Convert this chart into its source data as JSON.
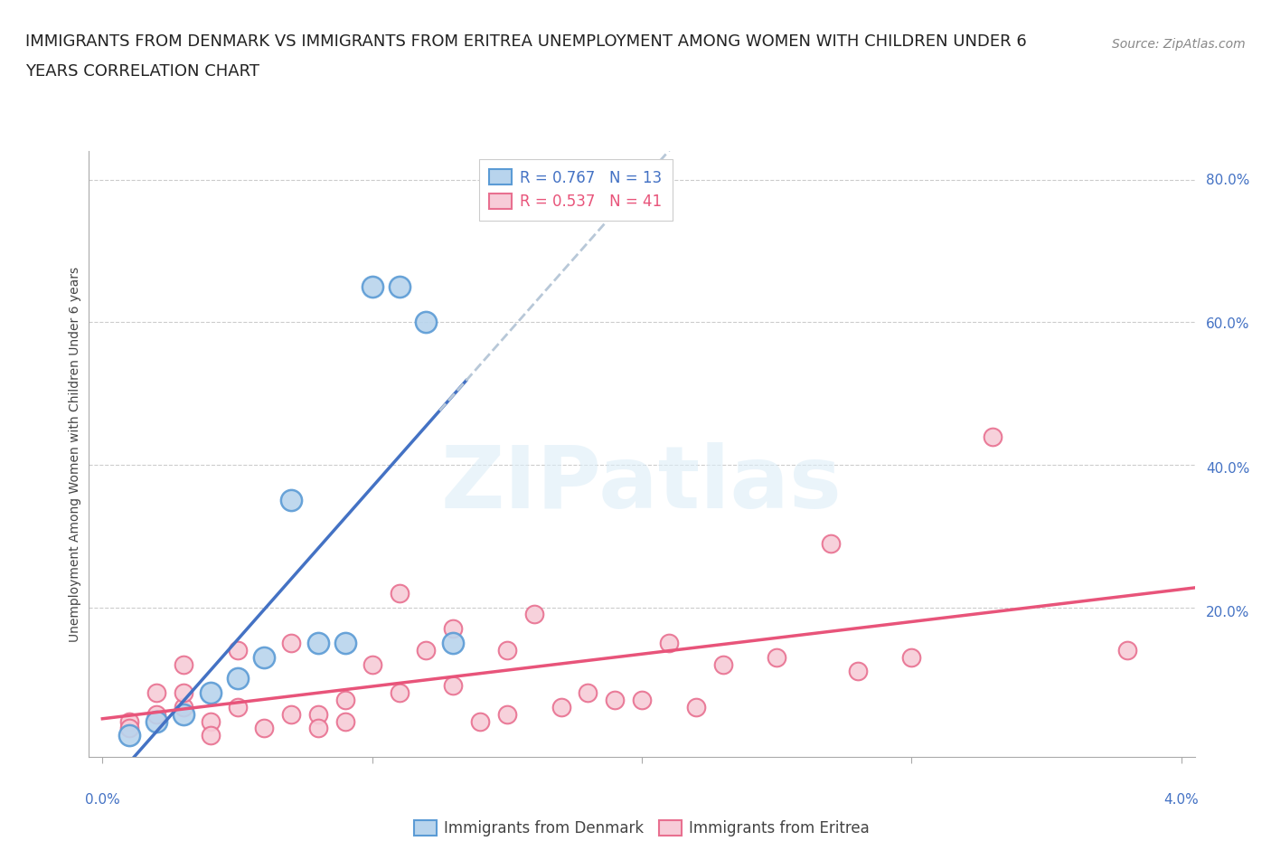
{
  "title_line1": "IMMIGRANTS FROM DENMARK VS IMMIGRANTS FROM ERITREA UNEMPLOYMENT AMONG WOMEN WITH CHILDREN UNDER 6",
  "title_line2": "YEARS CORRELATION CHART",
  "source": "Source: ZipAtlas.com",
  "ylabel": "Unemployment Among Women with Children Under 6 years",
  "denmark_R": 0.767,
  "denmark_N": 13,
  "eritrea_R": 0.537,
  "eritrea_N": 41,
  "legend_label_denmark": "Immigrants from Denmark",
  "legend_label_eritrea": "Immigrants from Eritrea",
  "watermark": "ZIPatlas",
  "denmark_color": "#b8d4ed",
  "denmark_edge_color": "#5b9bd5",
  "eritrea_color": "#f7ccd8",
  "eritrea_edge_color": "#e87090",
  "denmark_line_color": "#4472c4",
  "eritrea_line_color": "#e8547a",
  "denmark_dashed_color": "#b8c8d8",
  "denmark_scatter_x": [
    0.001,
    0.002,
    0.003,
    0.004,
    0.005,
    0.006,
    0.007,
    0.008,
    0.009,
    0.01,
    0.011,
    0.012,
    0.013
  ],
  "denmark_scatter_y": [
    0.02,
    0.04,
    0.05,
    0.08,
    0.1,
    0.13,
    0.35,
    0.15,
    0.15,
    0.65,
    0.65,
    0.6,
    0.15
  ],
  "eritrea_scatter_x": [
    0.001,
    0.001,
    0.002,
    0.002,
    0.003,
    0.003,
    0.003,
    0.004,
    0.004,
    0.005,
    0.005,
    0.006,
    0.007,
    0.007,
    0.008,
    0.008,
    0.009,
    0.009,
    0.01,
    0.011,
    0.011,
    0.012,
    0.013,
    0.013,
    0.014,
    0.015,
    0.015,
    0.016,
    0.017,
    0.018,
    0.019,
    0.02,
    0.021,
    0.022,
    0.023,
    0.025,
    0.027,
    0.028,
    0.03,
    0.033,
    0.038
  ],
  "eritrea_scatter_y": [
    0.04,
    0.03,
    0.05,
    0.08,
    0.06,
    0.08,
    0.12,
    0.04,
    0.02,
    0.06,
    0.14,
    0.03,
    0.05,
    0.15,
    0.05,
    0.03,
    0.07,
    0.04,
    0.12,
    0.08,
    0.22,
    0.14,
    0.09,
    0.17,
    0.04,
    0.14,
    0.05,
    0.19,
    0.06,
    0.08,
    0.07,
    0.07,
    0.15,
    0.06,
    0.12,
    0.13,
    0.29,
    0.11,
    0.13,
    0.44,
    0.14
  ],
  "xmin": 0.0,
  "xmax": 0.04,
  "ymin": 0.0,
  "ymax": 0.84,
  "background_color": "#ffffff",
  "grid_color": "#cccccc",
  "title_fontsize": 13,
  "axis_label_fontsize": 10,
  "tick_fontsize": 11,
  "legend_fontsize": 12,
  "source_fontsize": 10
}
